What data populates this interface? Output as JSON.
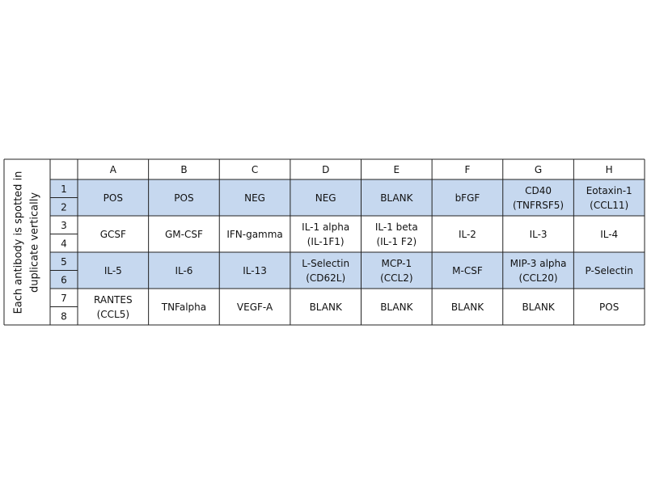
{
  "side_label": [
    "Each antibody is spotted in",
    "duplicate vertically"
  ],
  "table": {
    "columns": [
      "A",
      "B",
      "C",
      "D",
      "E",
      "F",
      "G",
      "H"
    ],
    "row_numbers": [
      "1",
      "2",
      "3",
      "4",
      "5",
      "6",
      "7",
      "8"
    ],
    "rows": [
      [
        [
          "POS"
        ],
        [
          "POS"
        ],
        [
          "NEG"
        ],
        [
          "NEG"
        ],
        [
          "BLANK"
        ],
        [
          "bFGF"
        ],
        [
          "CD40",
          "(TNFRSF5)"
        ],
        [
          "Eotaxin-1",
          "(CCL11)"
        ]
      ],
      [
        [
          "GCSF"
        ],
        [
          "GM-CSF"
        ],
        [
          "IFN-gamma"
        ],
        [
          "IL-1 alpha",
          "(IL-1F1)"
        ],
        [
          "IL-1 beta",
          "(IL-1 F2)"
        ],
        [
          "IL-2"
        ],
        [
          "IL-3"
        ],
        [
          "IL-4"
        ]
      ],
      [
        [
          "IL-5"
        ],
        [
          "IL-6"
        ],
        [
          "IL-13"
        ],
        [
          "L-Selectin",
          "(CD62L)"
        ],
        [
          "MCP-1",
          "(CCL2)"
        ],
        [
          "M-CSF"
        ],
        [
          "MIP-3 alpha",
          "(CCL20)"
        ],
        [
          "P-Selectin"
        ]
      ],
      [
        [
          "RANTES",
          "(CCL5)"
        ],
        [
          "TNFalpha"
        ],
        [
          "VEGF-A"
        ],
        [
          "BLANK"
        ],
        [
          "BLANK"
        ],
        [
          "BLANK"
        ],
        [
          "BLANK"
        ],
        [
          "POS"
        ]
      ]
    ]
  }
}
